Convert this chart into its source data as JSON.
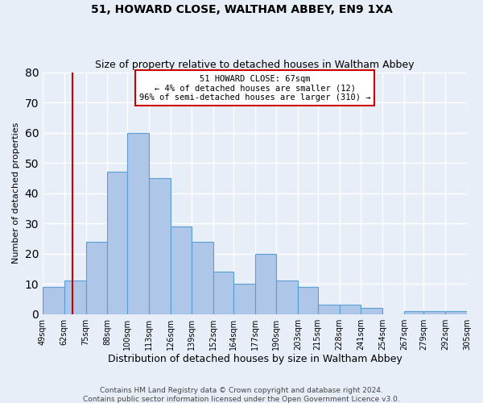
{
  "title": "51, HOWARD CLOSE, WALTHAM ABBEY, EN9 1XA",
  "subtitle": "Size of property relative to detached houses in Waltham Abbey",
  "xlabel": "Distribution of detached houses by size in Waltham Abbey",
  "ylabel": "Number of detached properties",
  "footer1": "Contains HM Land Registry data © Crown copyright and database right 2024.",
  "footer2": "Contains public sector information licensed under the Open Government Licence v3.0.",
  "bin_edges": [
    49,
    62,
    75,
    88,
    100,
    113,
    126,
    139,
    152,
    164,
    177,
    190,
    203,
    215,
    228,
    241,
    254,
    267,
    279,
    292,
    305
  ],
  "bin_labels": [
    "49sqm",
    "62sqm",
    "75sqm",
    "88sqm",
    "100sqm",
    "113sqm",
    "126sqm",
    "139sqm",
    "152sqm",
    "164sqm",
    "177sqm",
    "190sqm",
    "203sqm",
    "215sqm",
    "228sqm",
    "241sqm",
    "254sqm",
    "267sqm",
    "279sqm",
    "292sqm",
    "305sqm"
  ],
  "counts": [
    9,
    11,
    24,
    47,
    60,
    45,
    29,
    24,
    14,
    10,
    20,
    11,
    9,
    3,
    3,
    2,
    0,
    1,
    1,
    1
  ],
  "bar_color": "#aec6e8",
  "bar_edge_color": "#5a9fd4",
  "bg_color": "#e8eef8",
  "grid_color": "#ffffff",
  "property_line_x": 67,
  "property_line_color": "#cc0000",
  "annotation_title": "51 HOWARD CLOSE: 67sqm",
  "annotation_line1": "← 4% of detached houses are smaller (12)",
  "annotation_line2": "96% of semi-detached houses are larger (310) →",
  "annotation_box_color": "#cc0000",
  "ylim": [
    0,
    80
  ],
  "yticks": [
    0,
    10,
    20,
    30,
    40,
    50,
    60,
    70,
    80
  ]
}
